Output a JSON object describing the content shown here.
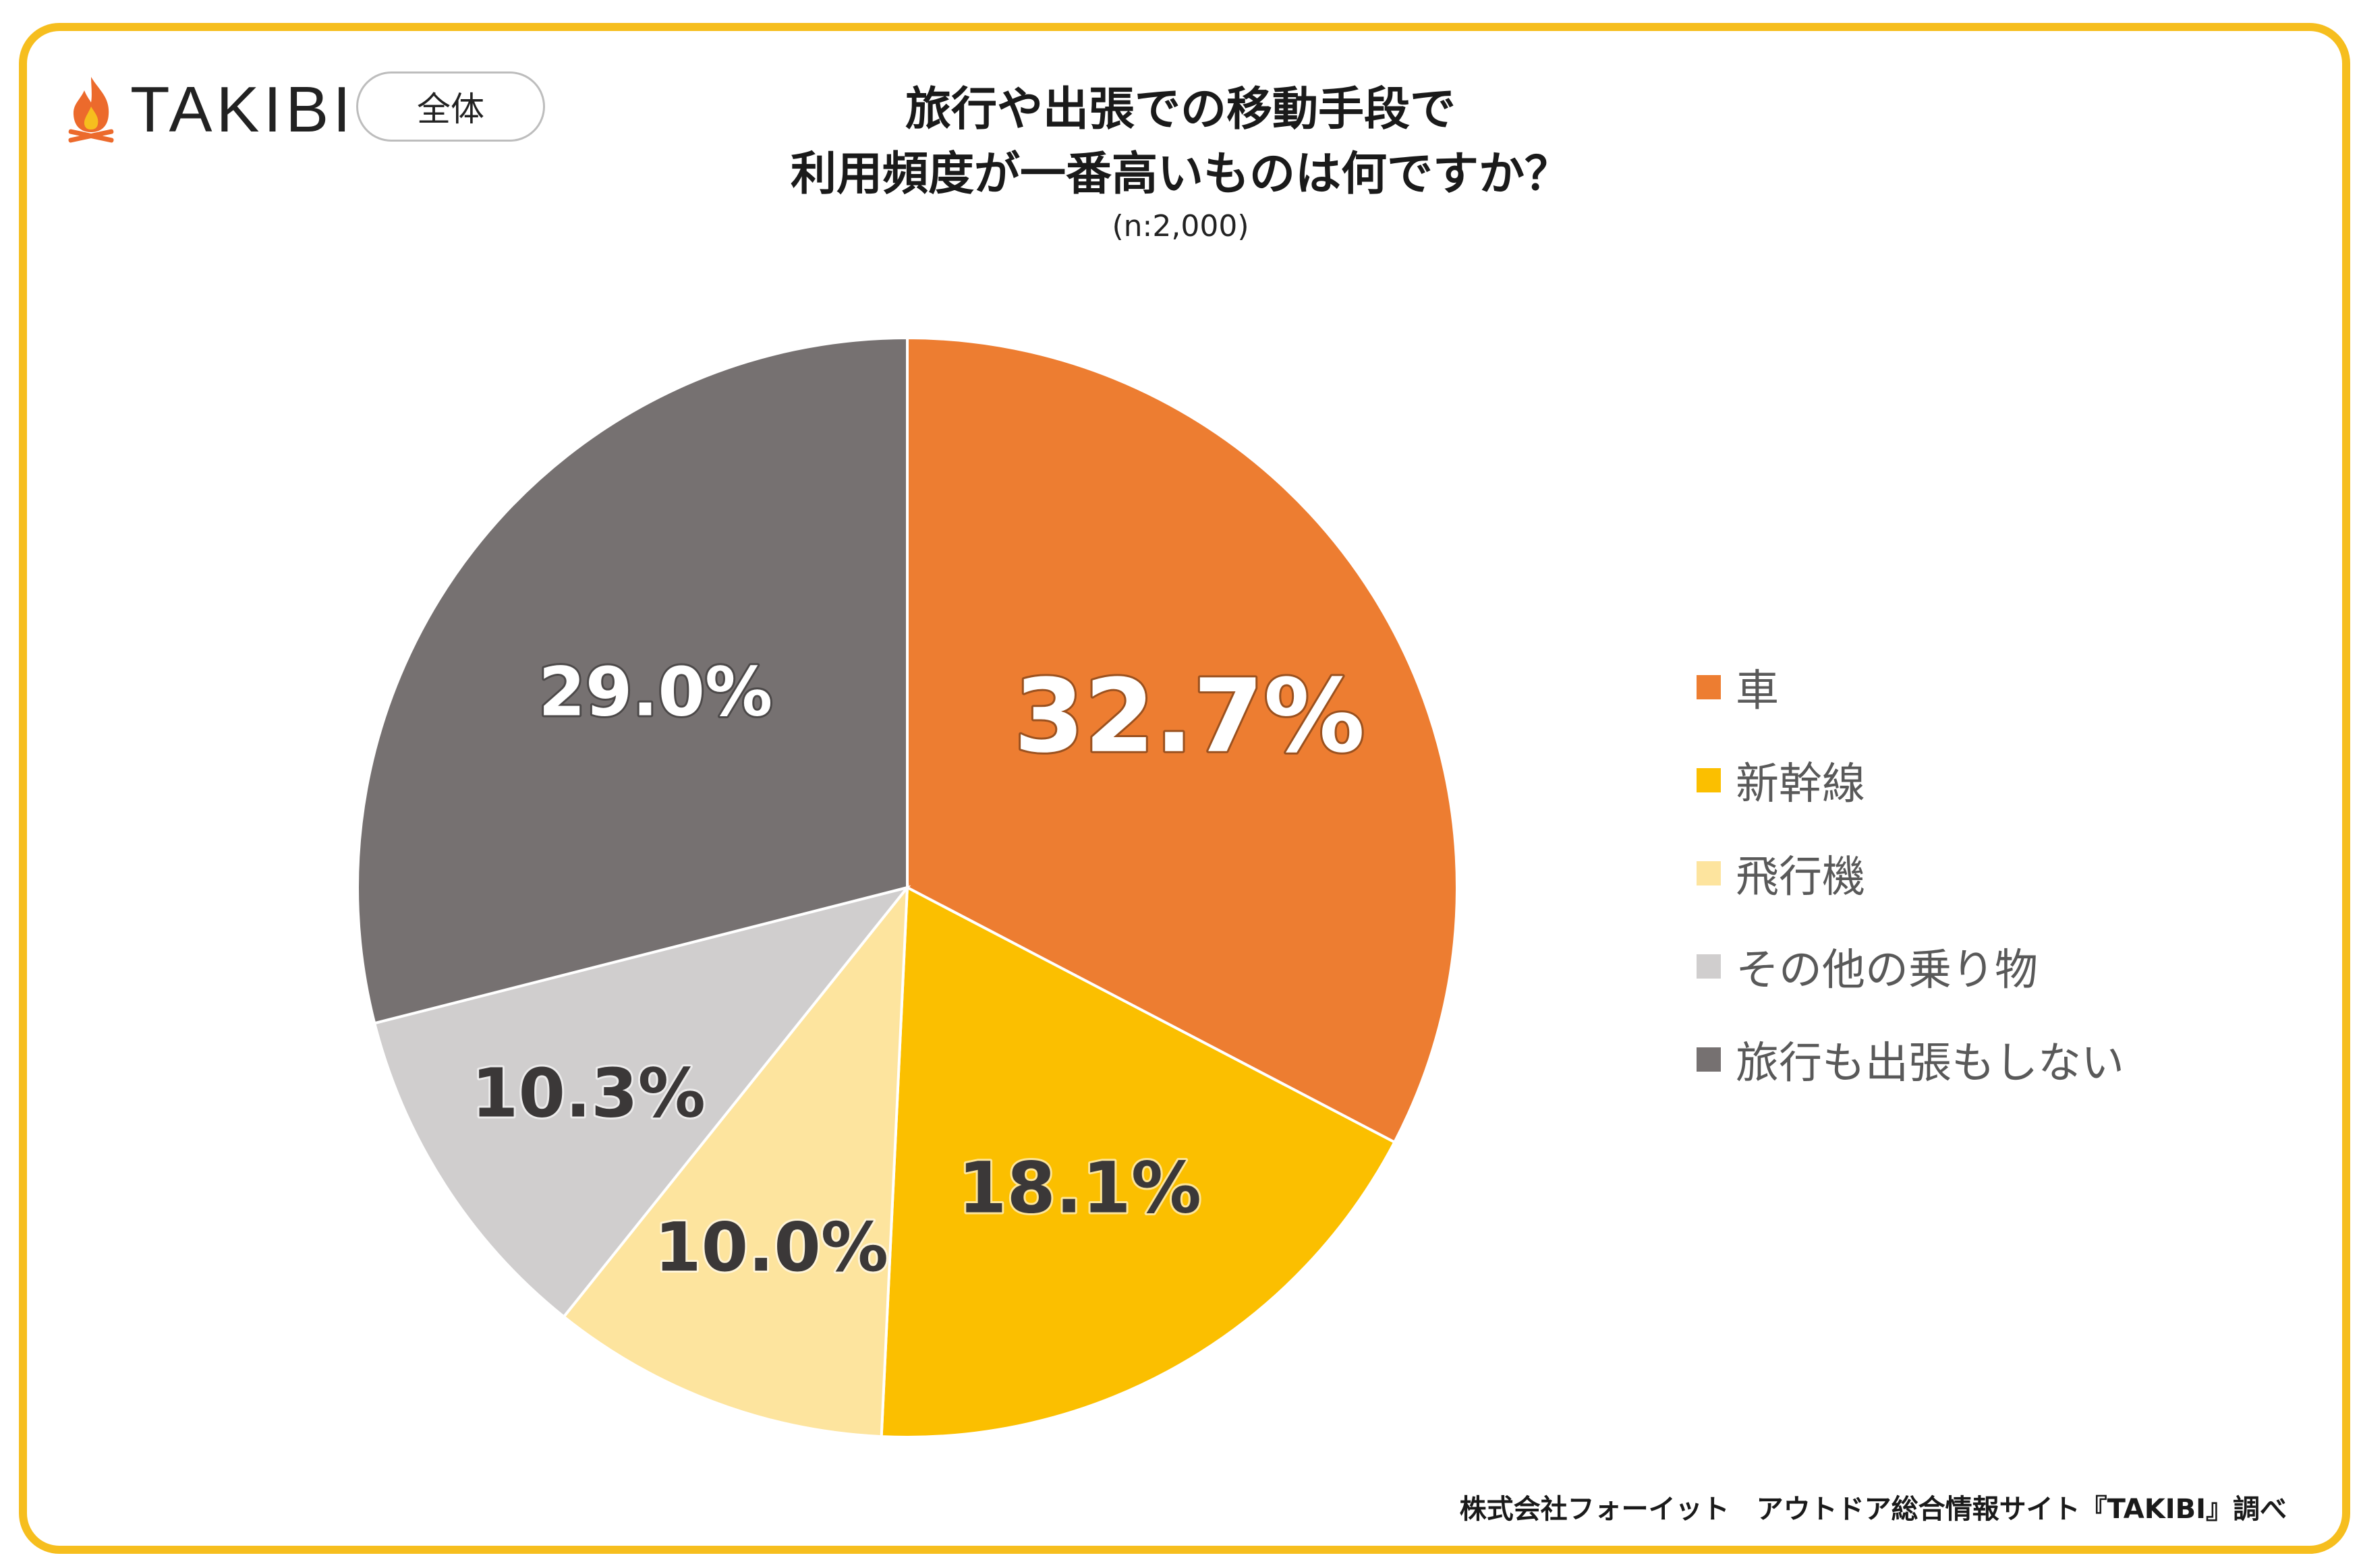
{
  "logo": {
    "text": "TAKIBI"
  },
  "badge": {
    "label": "全体"
  },
  "colors": {
    "frame": "#F6BE1E",
    "flame": "#EC6A2C",
    "car": "#ED7D31",
    "shinkansen": "#FBBF00",
    "airplane": "#FDE49E",
    "other": "#D0CECE",
    "none": "#767171"
  },
  "chart_data": {
    "type": "pie",
    "title_lines": [
      "旅行や出張での移動手段で",
      "利用頻度が一番高いものは何ですか？"
    ],
    "subtitle": "(n:2,000)",
    "legend_position": "right",
    "slices": [
      {
        "name": "車",
        "value": 32.7,
        "label": "32.7%",
        "color": "#ED7D31",
        "label_color": "#ffffff"
      },
      {
        "name": "新幹線",
        "value": 18.1,
        "label": "18.1%",
        "color": "#FBBF00",
        "label_color": "#3b3838"
      },
      {
        "name": "飛行機",
        "value": 10.0,
        "label": "10.0%",
        "color": "#FDE49E",
        "label_color": "#3b3838"
      },
      {
        "name": "その他の乗り物",
        "value": 10.3,
        "label": "10.3%",
        "color": "#D0CECE",
        "label_color": "#3b3838"
      },
      {
        "name": "旅行も出張もしない",
        "value": 29.0,
        "label": "29.0%",
        "color": "#767171",
        "label_color": "#ffffff"
      }
    ]
  },
  "footer": {
    "text": "株式会社フォーイット　アウトドア総合情報サイト『TAKIBI』調べ"
  }
}
